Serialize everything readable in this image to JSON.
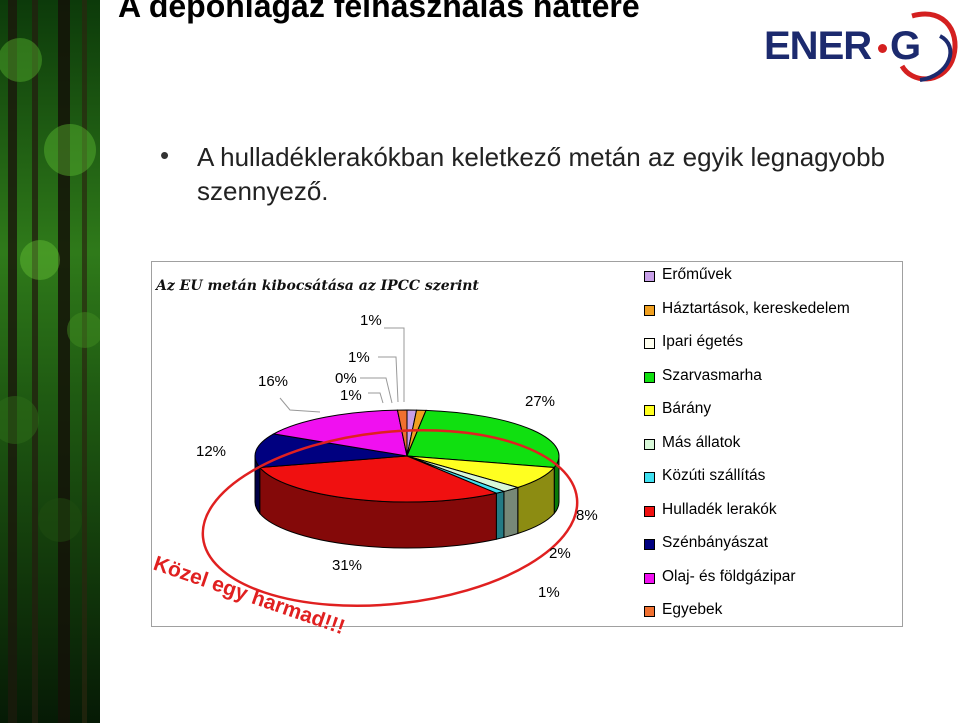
{
  "slide": {
    "title": "A depóniagáz felhasználás háttere",
    "bullet_symbol": "•",
    "bullet_text": "A hulladéklerakókban keletkező metán az egyik legnagyobb szennyező.",
    "callout": "Közel egy harmad!!!",
    "logo_text_left": "ENER",
    "logo_text_right": "G",
    "colors": {
      "logo_blue": "#1c2a6e",
      "logo_red": "#d42020",
      "callout_red": "#e02020"
    }
  },
  "chart_data": {
    "type": "pie",
    "title": "Az EU metán kibocsátása az IPCC szerint",
    "legend_position": "right",
    "categories": [
      "Erőművek",
      "Háztartások, kereskedelem",
      "Ipari égetés",
      "Szarvasmarha",
      "Bárány",
      "Más állatok",
      "Közúti szállítás",
      "Hulladék lerakók",
      "Szénbányászat",
      "Olaj- és földgázipar",
      "Egyebek"
    ],
    "values": [
      1,
      1,
      0,
      27,
      8,
      2,
      1,
      31,
      12,
      16,
      1
    ],
    "labels": [
      "1%",
      "1%",
      "0%",
      "27%",
      "8%",
      "2%",
      "1%",
      "31%",
      "12%",
      "16%",
      "1%"
    ],
    "colors": [
      "#c8a0e8",
      "#f0a020",
      "#fffff0",
      "#10e010",
      "#ffff20",
      "#d8f8d8",
      "#40e0f0",
      "#f01010",
      "#000080",
      "#f010f0",
      "#f07030"
    ]
  }
}
